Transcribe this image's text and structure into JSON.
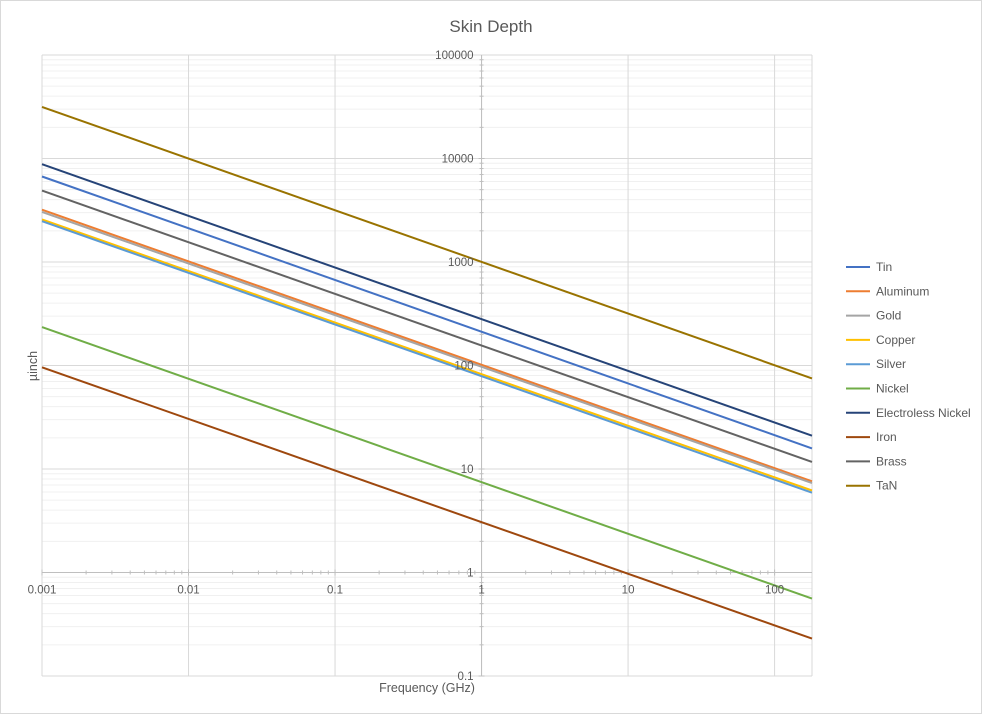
{
  "chart_data": {
    "type": "line",
    "title": "Skin Depth",
    "xlabel": "Frequency (GHz)",
    "ylabel": "µinch",
    "x_scale": "log",
    "y_scale": "log",
    "xlim": [
      0.001,
      180
    ],
    "ylim": [
      0.1,
      100000
    ],
    "x_ticks": [
      {
        "value": 0.001,
        "label": "0.001"
      },
      {
        "value": 0.01,
        "label": "0.01"
      },
      {
        "value": 0.1,
        "label": "0.1"
      },
      {
        "value": 1,
        "label": "1"
      },
      {
        "value": 10,
        "label": "10"
      },
      {
        "value": 100,
        "label": "100"
      }
    ],
    "y_ticks": [
      {
        "value": 0.1,
        "label": "0.1"
      },
      {
        "value": 1,
        "label": "1"
      },
      {
        "value": 10,
        "label": "10"
      },
      {
        "value": 100,
        "label": "100"
      },
      {
        "value": 1000,
        "label": "1000"
      },
      {
        "value": 10000,
        "label": "10000"
      },
      {
        "value": 100000,
        "label": "100000"
      }
    ],
    "x_crosses_y_at": 1,
    "y_crosses_x_at": 1,
    "grid": true,
    "legend_position": "right",
    "x": [
      0.001,
      180
    ],
    "series": [
      {
        "name": "Tin",
        "color": "#4472c4",
        "values": [
          6700,
          15.8
        ]
      },
      {
        "name": "Aluminum",
        "color": "#ed7d31",
        "values": [
          3200,
          7.6
        ]
      },
      {
        "name": "Gold",
        "color": "#a5a5a5",
        "values": [
          3050,
          7.3
        ]
      },
      {
        "name": "Copper",
        "color": "#ffc000",
        "values": [
          2580,
          6.2
        ]
      },
      {
        "name": "Silver",
        "color": "#5b9bd5",
        "values": [
          2480,
          5.9
        ]
      },
      {
        "name": "Nickel",
        "color": "#70ad47",
        "values": [
          235,
          0.56
        ]
      },
      {
        "name": "Electroless Nickel",
        "color": "#264478",
        "values": [
          8800,
          21
        ]
      },
      {
        "name": "Iron",
        "color": "#9e480e",
        "values": [
          96,
          0.23
        ]
      },
      {
        "name": "Brass",
        "color": "#636363",
        "values": [
          4900,
          11.7
        ]
      },
      {
        "name": "TaN",
        "color": "#997300",
        "values": [
          31500,
          75
        ]
      }
    ]
  }
}
